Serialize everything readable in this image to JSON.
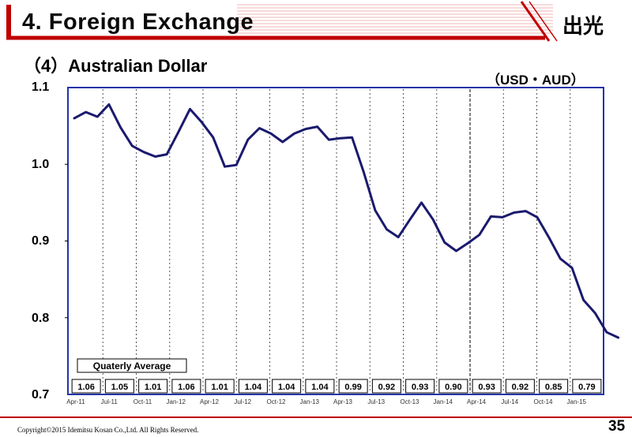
{
  "header": {
    "title": "4. Foreign Exchange",
    "logo_text": "出光"
  },
  "subtitle": "（4）Australian Dollar",
  "unit_label": "（USD・AUD）",
  "footer": {
    "copyright": "Copyright©2015 Idemitsu Kosan Co.,Ltd. All Rights Reserved.",
    "page_number": "35"
  },
  "colors": {
    "line": "#1a1a6e",
    "header_red": "#c00000",
    "frame": "#2233aa"
  },
  "chart_data": {
    "type": "line",
    "ylim": [
      0.7,
      1.1
    ],
    "y_ticks": [
      "1.1",
      "1.0",
      "0.9",
      "0.8",
      "0.7"
    ],
    "x_tick_labels": [
      "Apr-11",
      "Jul-11",
      "Oct-11",
      "Jan-12",
      "Apr-12",
      "Jul-12",
      "Oct-12",
      "Jan-13",
      "Apr-13",
      "Jul-13",
      "Oct-13",
      "Jan-14",
      "Apr-14",
      "Jul-14",
      "Oct-14",
      "Jan-15"
    ],
    "values": [
      1.06,
      1.068,
      1.062,
      1.078,
      1.048,
      1.024,
      1.016,
      1.01,
      1.013,
      1.042,
      1.072,
      1.055,
      1.035,
      0.997,
      0.999,
      1.032,
      1.047,
      1.04,
      1.029,
      1.04,
      1.046,
      1.049,
      1.032,
      1.034,
      1.035,
      0.99,
      0.94,
      0.915,
      0.905,
      0.928,
      0.95,
      0.928,
      0.898,
      0.887,
      0.897,
      0.908,
      0.932,
      0.931,
      0.937,
      0.939,
      0.931,
      0.905,
      0.877,
      0.865,
      0.823,
      0.806,
      0.781,
      0.774
    ],
    "quarterly_average_label": "Quaterly Average",
    "quarterly_averages": [
      "1.06",
      "1.05",
      "1.01",
      "1.06",
      "1.01",
      "1.04",
      "1.04",
      "1.04",
      "0.99",
      "0.92",
      "0.93",
      "0.90",
      "0.93",
      "0.92",
      "0.85",
      "0.79"
    ],
    "grid": "vertical dashed at quarters"
  }
}
